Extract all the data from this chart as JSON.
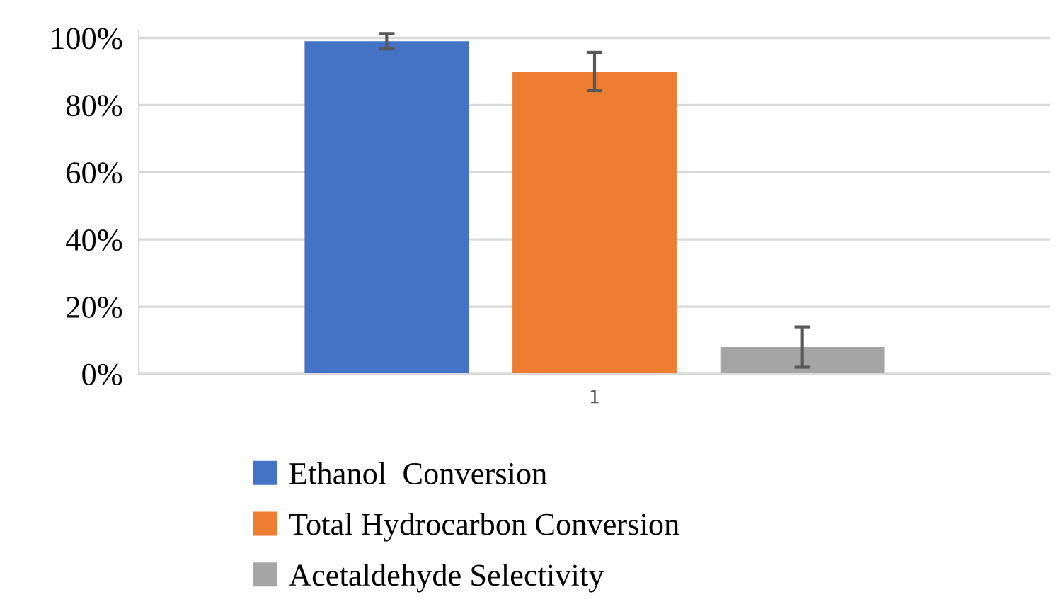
{
  "chart_data": {
    "type": "bar",
    "categories": [
      "1"
    ],
    "series": [
      {
        "name": "Ethanol  Conversion",
        "color": "#4472c4",
        "values": [
          99
        ],
        "errors": [
          2.3
        ]
      },
      {
        "name": "Total Hydrocarbon Conversion",
        "color": "#ed7d31",
        "values": [
          90
        ],
        "errors": [
          5.7
        ]
      },
      {
        "name": "Acetaldehyde Selectivity",
        "color": "#a5a5a5",
        "values": [
          8
        ],
        "errors": [
          6
        ]
      }
    ],
    "ylim": [
      0,
      102
    ],
    "yticks": [
      {
        "value": 0,
        "label": "0%"
      },
      {
        "value": 20,
        "label": "20%"
      },
      {
        "value": 40,
        "label": "40%"
      },
      {
        "value": 60,
        "label": "60%"
      },
      {
        "value": 80,
        "label": "80%"
      },
      {
        "value": 100,
        "label": "100%"
      }
    ],
    "grid": "y",
    "legend": "bottom"
  }
}
